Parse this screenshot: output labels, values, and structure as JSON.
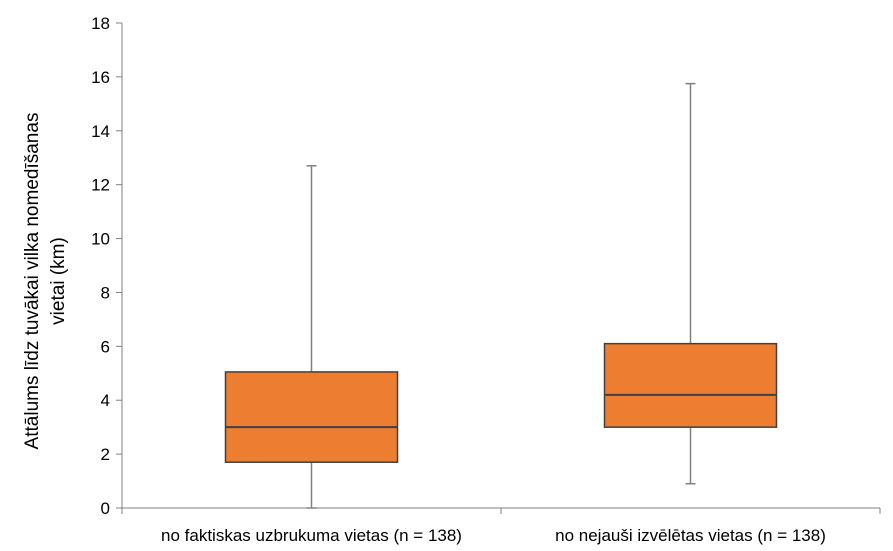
{
  "chart_data": {
    "type": "boxplot",
    "title": "",
    "xlabel": "",
    "ylabel_lines": [
      "Attālums līdz tuvākai vilka nomedīšanas",
      "vietai (km)"
    ],
    "ylim": [
      0,
      18
    ],
    "y_ticks": [
      0,
      2,
      4,
      6,
      8,
      10,
      12,
      14,
      16,
      18
    ],
    "grid": false,
    "legend": "none",
    "box_color": "#ED7D31",
    "box_edge_color": "#404040",
    "categories": [
      "no faktiskas uzbrukuma vietas (n = 138)",
      "no nejauši izvēlētas vietas (n = 138)"
    ],
    "boxes": [
      {
        "min": 0.0,
        "q1": 1.7,
        "median": 3.0,
        "q3": 5.05,
        "max": 12.7
      },
      {
        "min": 0.9,
        "q1": 3.0,
        "median": 4.2,
        "q3": 6.1,
        "max": 15.75
      }
    ]
  }
}
